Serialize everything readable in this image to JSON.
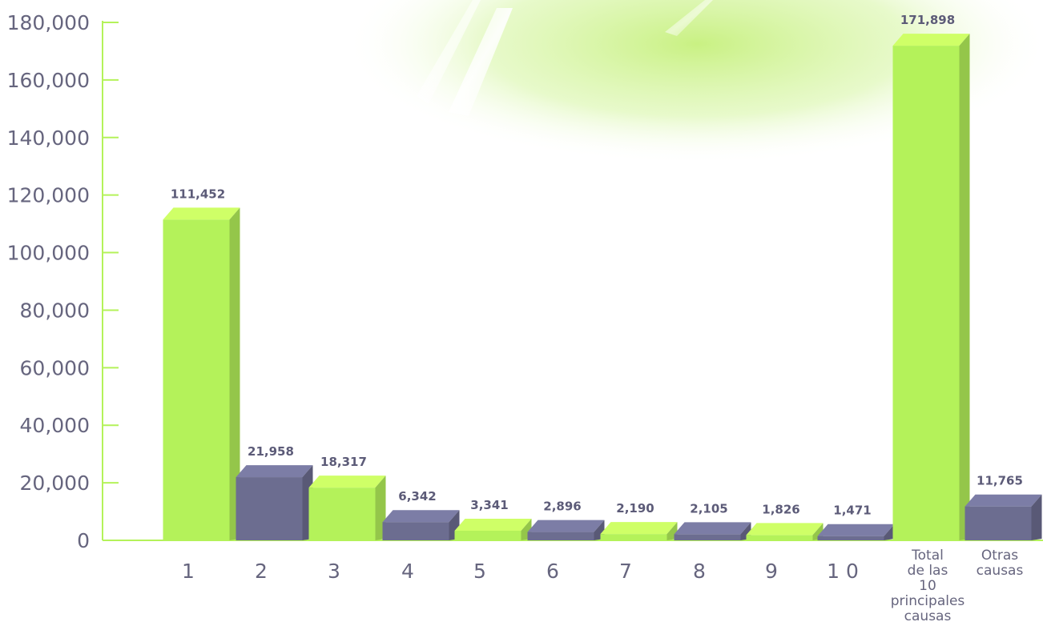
{
  "chart_data": {
    "type": "bar",
    "categories": [
      "1",
      "2",
      "3",
      "4",
      "5",
      "6",
      "7",
      "8",
      "9",
      "10",
      "Total de las 10 principales causas",
      "Otras causas"
    ],
    "category_lines": [
      [
        "1"
      ],
      [
        "2"
      ],
      [
        "3"
      ],
      [
        "4"
      ],
      [
        "5"
      ],
      [
        "6"
      ],
      [
        "7"
      ],
      [
        "8"
      ],
      [
        "9"
      ],
      [
        "1 0"
      ],
      [
        "Total",
        "de las",
        "10",
        "principales",
        "causas"
      ],
      [
        "Otras",
        "causas"
      ]
    ],
    "values": [
      111452,
      21958,
      18317,
      6342,
      3341,
      2896,
      2190,
      2105,
      1826,
      1471,
      171898,
      11765
    ],
    "value_labels": [
      "111,452",
      "21,958",
      "18,317",
      "6,342",
      "3,341",
      "2,896",
      "2,190",
      "2,105",
      "1,826",
      "1,471",
      "171,898",
      "11,765"
    ],
    "bar_colors": [
      "#b4f25a",
      "#6c6d90",
      "#b4f25a",
      "#6c6d90",
      "#b4f25a",
      "#6c6d90",
      "#b4f25a",
      "#6c6d90",
      "#b4f25a",
      "#6c6d90",
      "#b4f25a",
      "#6c6d90"
    ],
    "yticks": [
      "0",
      "20,000",
      "40,000",
      "60,000",
      "80,000",
      "100,000",
      "120,000",
      "140,000",
      "160,000",
      "180,000"
    ],
    "ylim": [
      0,
      180000
    ],
    "title": "",
    "xlabel": "",
    "ylabel": "",
    "grid": false,
    "axis_color": "#b4f25a",
    "text_color": "#66657e"
  }
}
